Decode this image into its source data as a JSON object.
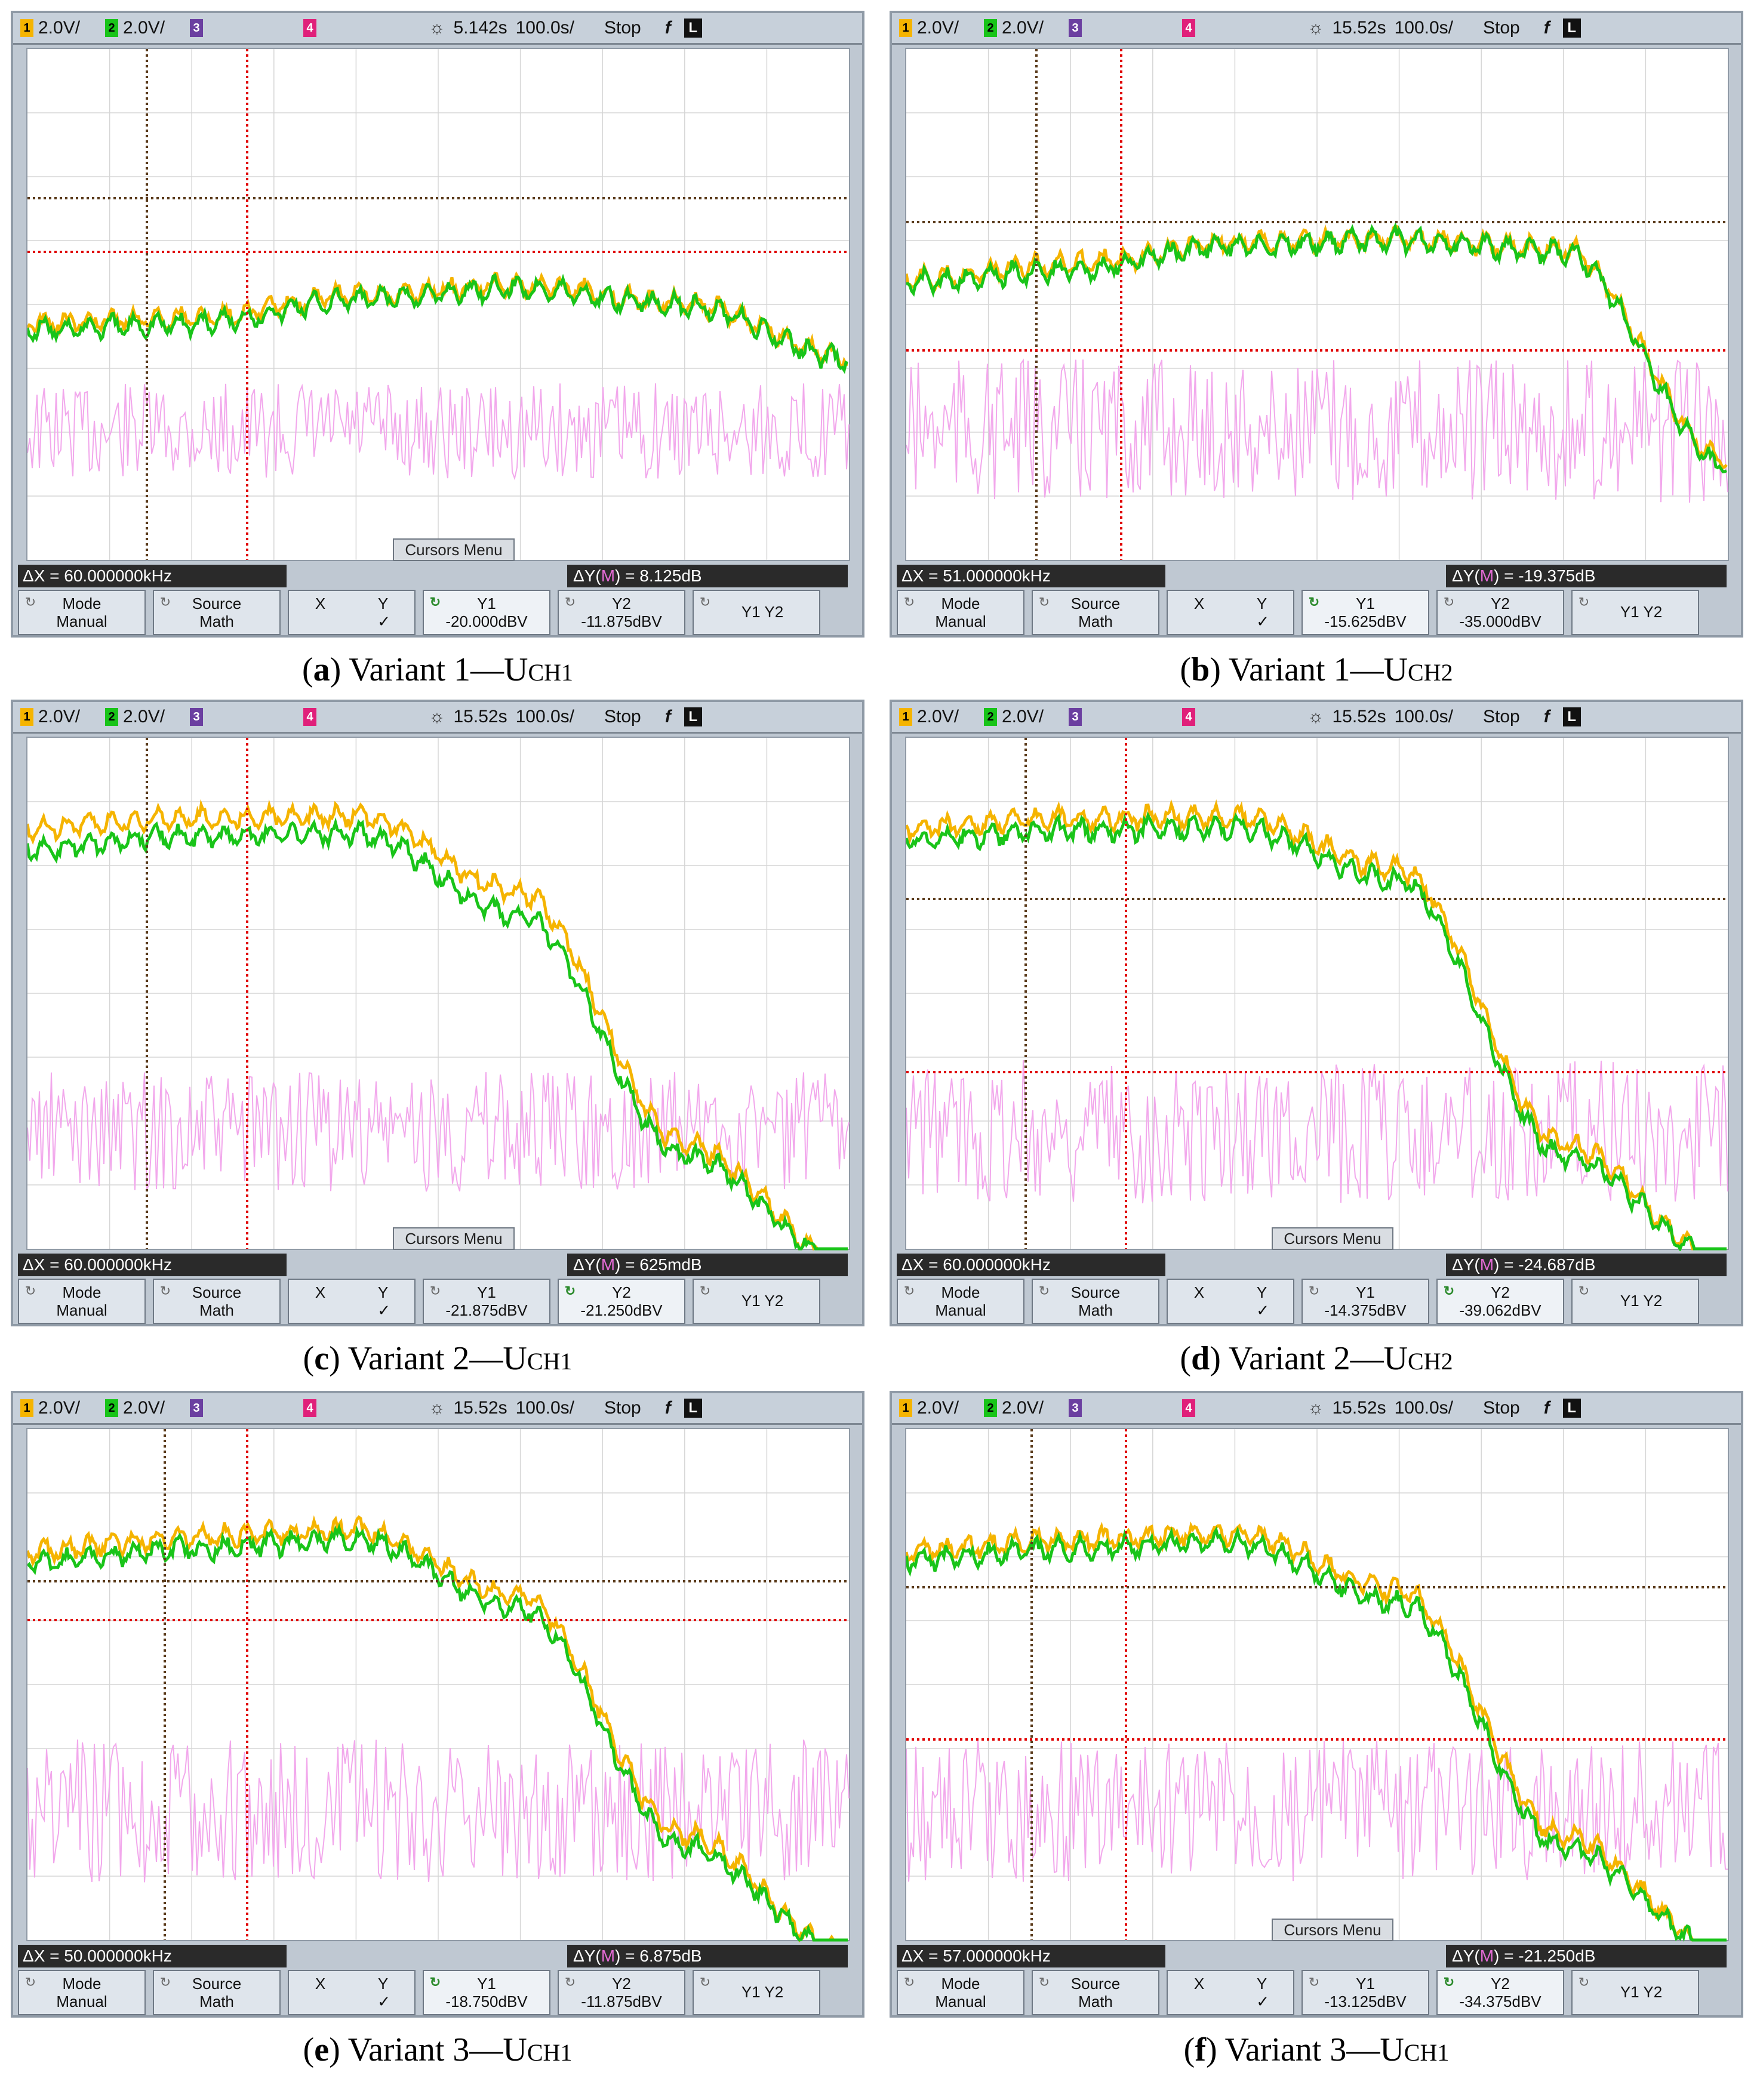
{
  "colors": {
    "ch1": "#f5b400",
    "ch2": "#19c419",
    "math": "#f2a8ec",
    "cursor_x1": "#5a3a1a",
    "cursor_x2": "#e00000"
  },
  "panels": [
    {
      "topbar": {
        "ch1": "2.0V/",
        "ch2": "2.0V/",
        "ch3": "3",
        "ch4": "4",
        "ch1num": "1",
        "ch2num": "2",
        "delay": "5.142s",
        "timediv": "100.0s/",
        "status": "Stop",
        "trigger": "f",
        "mode": "L"
      },
      "cursors_menu": "Cursors Menu",
      "dx": "ΔX = 60.000000kHz",
      "dy_prefix": "ΔY(",
      "dy_m": "M",
      "dy_value": ") = 8.125dB",
      "softkeys": {
        "mode_title": "Mode",
        "mode_value": "Manual",
        "source_title": "Source",
        "source_value": "Math",
        "x": "X",
        "y": "Y",
        "check": "✓",
        "y1_title": "Y1",
        "y1_value": "-20.000dBV",
        "y2_title": "Y2",
        "y2_value": "-11.875dBV",
        "y1y2": "Y1 Y2"
      },
      "active": "y1",
      "caption_letter": "a",
      "caption_text": " Variant 1—U",
      "caption_sub": "CH1"
    },
    {
      "topbar": {
        "ch1": "2.0V/",
        "ch2": "2.0V/",
        "ch3": "3",
        "ch4": "4",
        "ch1num": "1",
        "ch2num": "2",
        "delay": "15.52s",
        "timediv": "100.0s/",
        "status": "Stop",
        "trigger": "f",
        "mode": "L"
      },
      "cursors_menu": "",
      "dx": "ΔX = 51.000000kHz",
      "dy_prefix": "ΔY(",
      "dy_m": "M",
      "dy_value": ") = -19.375dB",
      "softkeys": {
        "mode_title": "Mode",
        "mode_value": "Manual",
        "source_title": "Source",
        "source_value": "Math",
        "x": "X",
        "y": "Y",
        "check": "✓",
        "y1_title": "Y1",
        "y1_value": "-15.625dBV",
        "y2_title": "Y2",
        "y2_value": "-35.000dBV",
        "y1y2": "Y1 Y2"
      },
      "active": "y1",
      "caption_letter": "b",
      "caption_text": " Variant 1—U",
      "caption_sub": "CH2"
    },
    {
      "topbar": {
        "ch1": "2.0V/",
        "ch2": "2.0V/",
        "ch3": "3",
        "ch4": "4",
        "ch1num": "1",
        "ch2num": "2",
        "delay": "15.52s",
        "timediv": "100.0s/",
        "status": "Stop",
        "trigger": "f",
        "mode": "L"
      },
      "cursors_menu": "Cursors Menu",
      "dx": "ΔX = 60.000000kHz",
      "dy_prefix": "ΔY(",
      "dy_m": "M",
      "dy_value": ") = 625mdB",
      "softkeys": {
        "mode_title": "Mode",
        "mode_value": "Manual",
        "source_title": "Source",
        "source_value": "Math",
        "x": "X",
        "y": "Y",
        "check": "✓",
        "y1_title": "Y1",
        "y1_value": "-21.875dBV",
        "y2_title": "Y2",
        "y2_value": "-21.250dBV",
        "y1y2": "Y1 Y2"
      },
      "active": "y2",
      "caption_letter": "c",
      "caption_text": " Variant 2—U",
      "caption_sub": "CH1"
    },
    {
      "topbar": {
        "ch1": "2.0V/",
        "ch2": "2.0V/",
        "ch3": "3",
        "ch4": "4",
        "ch1num": "1",
        "ch2num": "2",
        "delay": "15.52s",
        "timediv": "100.0s/",
        "status": "Stop",
        "trigger": "f",
        "mode": "L"
      },
      "cursors_menu": "Cursors Menu",
      "dx": "ΔX = 60.000000kHz",
      "dy_prefix": "ΔY(",
      "dy_m": "M",
      "dy_value": ") = -24.687dB",
      "softkeys": {
        "mode_title": "Mode",
        "mode_value": "Manual",
        "source_title": "Source",
        "source_value": "Math",
        "x": "X",
        "y": "Y",
        "check": "✓",
        "y1_title": "Y1",
        "y1_value": "-14.375dBV",
        "y2_title": "Y2",
        "y2_value": "-39.062dBV",
        "y1y2": "Y1 Y2"
      },
      "active": "y2",
      "caption_letter": "d",
      "caption_text": " Variant 2—U",
      "caption_sub": "CH2"
    },
    {
      "topbar": {
        "ch1": "2.0V/",
        "ch2": "2.0V/",
        "ch3": "3",
        "ch4": "4",
        "ch1num": "1",
        "ch2num": "2",
        "delay": "15.52s",
        "timediv": "100.0s/",
        "status": "Stop",
        "trigger": "f",
        "mode": "L"
      },
      "cursors_menu": "",
      "dx": "ΔX = 50.000000kHz",
      "dy_prefix": "ΔY(",
      "dy_m": "M",
      "dy_value": ") = 6.875dB",
      "softkeys": {
        "mode_title": "Mode",
        "mode_value": "Manual",
        "source_title": "Source",
        "source_value": "Math",
        "x": "X",
        "y": "Y",
        "check": "✓",
        "y1_title": "Y1",
        "y1_value": "-18.750dBV",
        "y2_title": "Y2",
        "y2_value": "-11.875dBV",
        "y1y2": "Y1 Y2"
      },
      "active": "y1",
      "caption_letter": "e",
      "caption_text": " Variant 3—U",
      "caption_sub": "CH1"
    },
    {
      "topbar": {
        "ch1": "2.0V/",
        "ch2": "2.0V/",
        "ch3": "3",
        "ch4": "4",
        "ch1num": "1",
        "ch2num": "2",
        "delay": "15.52s",
        "timediv": "100.0s/",
        "status": "Stop",
        "trigger": "f",
        "mode": "L"
      },
      "cursors_menu": "Cursors Menu",
      "dx": "ΔX = 57.000000kHz",
      "dy_prefix": "ΔY(",
      "dy_m": "M",
      "dy_value": ") = -21.250dB",
      "softkeys": {
        "mode_title": "Mode",
        "mode_value": "Manual",
        "source_title": "Source",
        "source_value": "Math",
        "x": "X",
        "y": "Y",
        "check": "✓",
        "y1_title": "Y1",
        "y1_value": "-13.125dBV",
        "y2_title": "Y2",
        "y2_value": "-34.375dBV",
        "y1y2": "Y1 Y2"
      },
      "active": "y2",
      "caption_letter": "f",
      "caption_text": " Variant 3—U",
      "caption_sub": "CH1"
    }
  ]
}
